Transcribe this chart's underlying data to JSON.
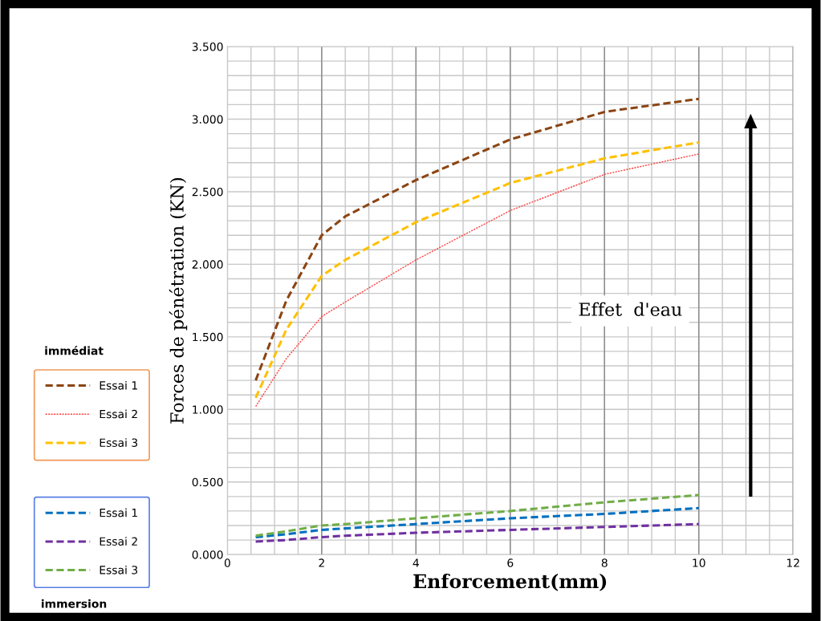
{
  "chart_data": {
    "type": "line",
    "xlabel": "Enforcement(mm)",
    "ylabel": "Forces de pénétration (KN)",
    "xlim": [
      0,
      12
    ],
    "xticks": [
      0,
      2,
      4,
      6,
      8,
      10,
      12
    ],
    "ylim": [
      0,
      3.5
    ],
    "yticks": [
      {
        "value": 0,
        "label": "0.000"
      },
      {
        "value": 0.5,
        "label": "0.500"
      },
      {
        "value": 1,
        "label": "1.000"
      },
      {
        "value": 1.5,
        "label": "1.500"
      },
      {
        "value": 2,
        "label": "2.000"
      },
      {
        "value": 2.5,
        "label": "2.500"
      },
      {
        "value": 3,
        "label": "3.000"
      },
      {
        "value": 3.5,
        "label": "3.500"
      }
    ],
    "grid": true,
    "legend": "left",
    "marker": "none",
    "annotations": [
      "Effet  d'eau",
      "immédiat",
      "immersion"
    ],
    "x": [
      0.6,
      1.25,
      2,
      2.5,
      4,
      6,
      8,
      10
    ],
    "series": [
      {
        "name": "Essai 1",
        "color": "#8b4513",
        "line_style": "dashed",
        "values": [
          1.2,
          1.75,
          2.2,
          2.33,
          2.58,
          2.86,
          3.05,
          3.14
        ]
      },
      {
        "name": "Essai 2",
        "color": "#ff4040",
        "line_style": "dotted",
        "values": [
          1.02,
          1.35,
          1.64,
          1.74,
          2.03,
          2.37,
          2.62,
          2.76
        ]
      },
      {
        "name": "Essai 3",
        "color": "#ffc000",
        "line_style": "dashed",
        "values": [
          1.08,
          1.55,
          1.92,
          2.03,
          2.29,
          2.56,
          2.73,
          2.84
        ]
      },
      {
        "name": "Essai 1",
        "color": "#0070c0",
        "line_style": "dashed",
        "values": [
          0.12,
          0.14,
          0.17,
          0.18,
          0.21,
          0.25,
          0.28,
          0.32
        ]
      },
      {
        "name": "Essai 2",
        "color": "#7030a0",
        "line_style": "dashed",
        "values": [
          0.09,
          0.1,
          0.12,
          0.13,
          0.15,
          0.17,
          0.19,
          0.21
        ]
      },
      {
        "name": "Essai 3",
        "color": "#70ad47",
        "line_style": "dashed",
        "values": [
          0.13,
          0.16,
          0.2,
          0.21,
          0.25,
          0.3,
          0.36,
          0.41
        ]
      }
    ]
  }
}
